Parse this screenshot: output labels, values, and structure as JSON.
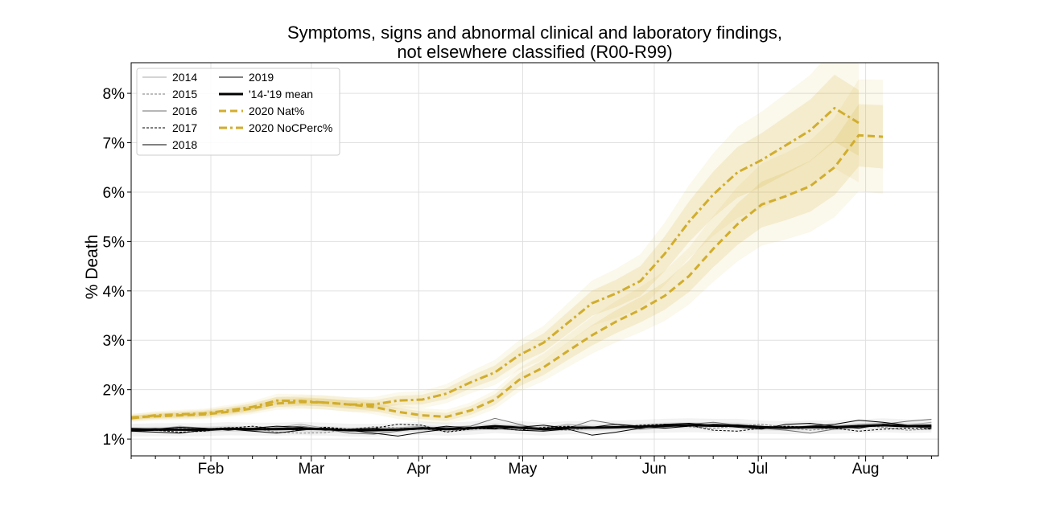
{
  "chart_data": {
    "type": "line",
    "title_line1": "Symptoms, signs and abnormal clinical and laboratory findings,",
    "title_line2": "not elsewhere classified (R00-R99)",
    "xlabel": "",
    "ylabel": "% Death",
    "x_axis": {
      "unit": "week ending date (approx.)",
      "range": [
        "2020-01-09",
        "2020-08-29"
      ],
      "tick_labels": [
        {
          "label": "Feb",
          "date": "2020-02-01"
        },
        {
          "label": "Mar",
          "date": "2020-03-01"
        },
        {
          "label": "Apr",
          "date": "2020-04-01"
        },
        {
          "label": "May",
          "date": "2020-05-01"
        },
        {
          "label": "Jun",
          "date": "2020-06-08"
        },
        {
          "label": "Jul",
          "date": "2020-07-08"
        },
        {
          "label": "Aug",
          "date": "2020-08-08"
        }
      ]
    },
    "y_axis": {
      "range": [
        0.66,
        8.62
      ],
      "ticks": [
        1,
        2,
        3,
        4,
        5,
        6,
        7,
        8
      ],
      "tick_format": "{v}%"
    },
    "grid": true,
    "legend": {
      "placement": "top-left",
      "entries": [
        "2014",
        "2015",
        "2016",
        "2017",
        "2018",
        "2019",
        "'14-'19 mean",
        "2020 Nat%",
        "2020 NoCPerc%"
      ]
    },
    "x_dates": [
      "2020-01-09",
      "2020-01-16",
      "2020-01-23",
      "2020-01-30",
      "2020-02-06",
      "2020-02-13",
      "2020-02-20",
      "2020-02-27",
      "2020-03-05",
      "2020-03-12",
      "2020-03-19",
      "2020-03-26",
      "2020-04-02",
      "2020-04-09",
      "2020-04-16",
      "2020-04-23",
      "2020-04-30",
      "2020-05-07",
      "2020-05-14",
      "2020-05-21",
      "2020-05-28",
      "2020-06-04",
      "2020-06-11",
      "2020-06-18",
      "2020-06-25",
      "2020-07-02",
      "2020-07-09",
      "2020-07-16",
      "2020-07-23",
      "2020-07-30",
      "2020-08-06",
      "2020-08-13",
      "2020-08-20",
      "2020-08-27"
    ],
    "series": [
      {
        "name": "2014",
        "style": "thin-solid",
        "color": "#a8a8a8",
        "values": [
          1.18,
          1.2,
          1.26,
          1.22,
          1.2,
          1.16,
          1.24,
          1.3,
          1.22,
          1.18,
          1.2,
          1.23,
          1.26,
          1.2,
          1.22,
          1.25,
          1.28,
          1.22,
          1.3,
          1.25,
          1.22,
          1.28,
          1.3,
          1.26,
          1.28,
          1.3,
          1.24,
          1.2,
          1.28,
          1.26,
          1.3,
          1.32,
          1.28,
          1.34
        ]
      },
      {
        "name": "2015",
        "style": "thin-dashed",
        "color": "#7c7c7c",
        "values": [
          1.16,
          1.18,
          1.22,
          1.2,
          1.24,
          1.22,
          1.14,
          1.12,
          1.13,
          1.2,
          1.25,
          1.23,
          1.2,
          1.16,
          1.2,
          1.24,
          1.22,
          1.2,
          1.18,
          1.22,
          1.24,
          1.26,
          1.28,
          1.25,
          1.22,
          1.26,
          1.3,
          1.24,
          1.18,
          1.22,
          1.28,
          1.24,
          1.18,
          1.2
        ]
      },
      {
        "name": "2016",
        "style": "thin-solid",
        "color": "#6e6e6e",
        "values": [
          1.2,
          1.22,
          1.18,
          1.16,
          1.2,
          1.18,
          1.22,
          1.26,
          1.2,
          1.12,
          1.1,
          1.16,
          1.22,
          1.24,
          1.26,
          1.42,
          1.3,
          1.18,
          1.22,
          1.38,
          1.3,
          1.2,
          1.24,
          1.3,
          1.34,
          1.28,
          1.22,
          1.18,
          1.12,
          1.2,
          1.24,
          1.3,
          1.36,
          1.4
        ]
      },
      {
        "name": "2017",
        "style": "thin-dashed",
        "color": "#000000",
        "values": [
          1.2,
          1.18,
          1.14,
          1.16,
          1.22,
          1.26,
          1.2,
          1.18,
          1.24,
          1.2,
          1.22,
          1.3,
          1.28,
          1.14,
          1.2,
          1.22,
          1.18,
          1.24,
          1.26,
          1.22,
          1.24,
          1.28,
          1.3,
          1.28,
          1.18,
          1.16,
          1.22,
          1.26,
          1.24,
          1.22,
          1.16,
          1.2,
          1.22,
          1.2
        ]
      },
      {
        "name": "2018",
        "style": "thin-solid",
        "color": "#000000",
        "values": [
          1.16,
          1.14,
          1.12,
          1.18,
          1.2,
          1.16,
          1.12,
          1.18,
          1.22,
          1.18,
          1.12,
          1.06,
          1.14,
          1.2,
          1.24,
          1.22,
          1.18,
          1.16,
          1.2,
          1.08,
          1.14,
          1.22,
          1.3,
          1.32,
          1.28,
          1.24,
          1.2,
          1.3,
          1.32,
          1.26,
          1.22,
          1.3,
          1.26,
          1.22
        ]
      },
      {
        "name": "2019",
        "style": "thin-solid",
        "color": "#000000",
        "values": [
          1.22,
          1.2,
          1.24,
          1.22,
          1.18,
          1.22,
          1.26,
          1.24,
          1.18,
          1.2,
          1.22,
          1.18,
          1.2,
          1.26,
          1.22,
          1.2,
          1.24,
          1.28,
          1.22,
          1.24,
          1.3,
          1.26,
          1.22,
          1.26,
          1.3,
          1.28,
          1.26,
          1.22,
          1.26,
          1.3,
          1.38,
          1.34,
          1.28,
          1.24
        ]
      },
      {
        "name": "'14-'19 mean",
        "style": "thick-solid",
        "color": "#000000",
        "values": [
          1.18,
          1.19,
          1.19,
          1.19,
          1.21,
          1.2,
          1.2,
          1.21,
          1.2,
          1.18,
          1.18,
          1.19,
          1.22,
          1.2,
          1.22,
          1.26,
          1.23,
          1.2,
          1.23,
          1.23,
          1.24,
          1.25,
          1.27,
          1.28,
          1.27,
          1.27,
          1.24,
          1.23,
          1.24,
          1.24,
          1.26,
          1.28,
          1.26,
          1.27
        ]
      },
      {
        "name": "2020 Nat%",
        "style": "dashed",
        "color": "#d1ad2e",
        "values": [
          1.44,
          1.46,
          1.48,
          1.5,
          1.55,
          1.62,
          1.72,
          1.75,
          1.74,
          1.7,
          1.65,
          1.55,
          1.48,
          1.45,
          1.58,
          1.8,
          2.2,
          2.45,
          2.78,
          3.1,
          3.38,
          3.62,
          3.9,
          4.3,
          4.85,
          5.35,
          5.75,
          5.92,
          6.12,
          6.5,
          7.15,
          7.12
        ]
      },
      {
        "name": "2020 NoCPerc%",
        "style": "dash-dot",
        "color": "#d1ad2e",
        "values": [
          1.42,
          1.48,
          1.5,
          1.52,
          1.58,
          1.65,
          1.78,
          1.77,
          1.74,
          1.7,
          1.7,
          1.78,
          1.8,
          1.92,
          2.15,
          2.35,
          2.7,
          2.95,
          3.35,
          3.75,
          3.95,
          4.2,
          4.75,
          5.4,
          5.95,
          6.4,
          6.65,
          6.95,
          7.25,
          7.7,
          7.4
        ]
      }
    ]
  }
}
